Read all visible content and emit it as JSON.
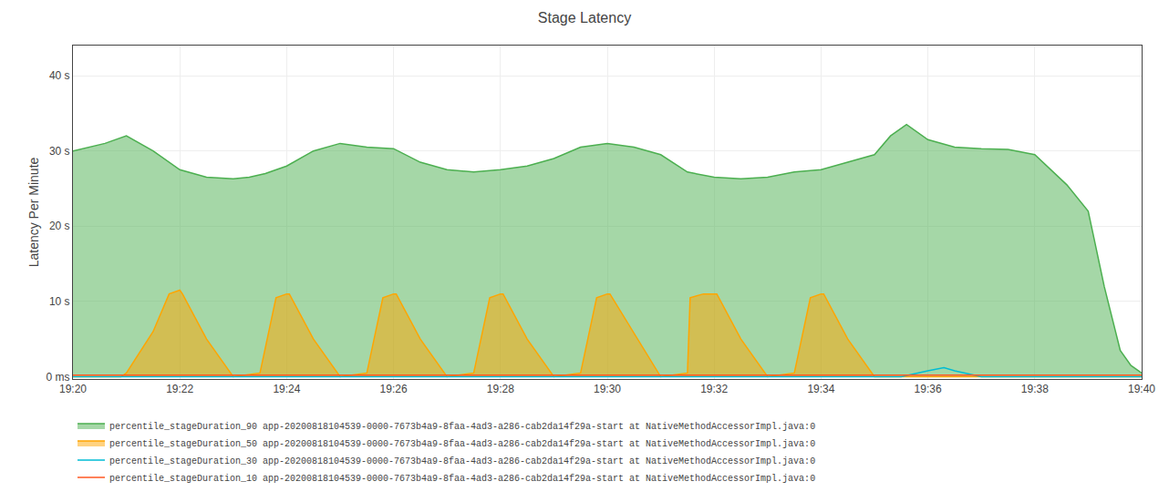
{
  "chart_data": {
    "type": "line",
    "title": "Stage Latency",
    "ylabel": "Latency Per Minute",
    "xlim": [
      0,
      20
    ],
    "xticks": [
      {
        "value": 0,
        "label": "19:20"
      },
      {
        "value": 2,
        "label": "19:22"
      },
      {
        "value": 4,
        "label": "19:24"
      },
      {
        "value": 6,
        "label": "19:26"
      },
      {
        "value": 8,
        "label": "19:28"
      },
      {
        "value": 10,
        "label": "19:30"
      },
      {
        "value": 12,
        "label": "19:32"
      },
      {
        "value": 14,
        "label": "19:34"
      },
      {
        "value": 16,
        "label": "19:36"
      },
      {
        "value": 18,
        "label": "19:38"
      },
      {
        "value": 20,
        "label": "19:40"
      }
    ],
    "ylim": [
      -0.3,
      44
    ],
    "yticks": [
      {
        "value": 0,
        "label": "0 ms"
      },
      {
        "value": 10,
        "label": "10 s"
      },
      {
        "value": 20,
        "label": "20 s"
      },
      {
        "value": 30,
        "label": "30 s"
      },
      {
        "value": 40,
        "label": "40 s"
      }
    ],
    "grid": true,
    "legend": "bottom",
    "series": [
      {
        "name": "percentile_stageDuration_90 app-20200818104539-0000-7673b4a9-8faa-4ad3-a286-cab2da14f29a-start at NativeMethodAccessorImpl.java:0",
        "type": "area",
        "color": "#4caf50",
        "x": [
          0,
          0.3,
          0.6,
          1.0,
          1.5,
          2.0,
          2.5,
          3.0,
          3.3,
          3.6,
          4.0,
          4.5,
          5.0,
          5.5,
          6.0,
          6.5,
          7.0,
          7.5,
          8.0,
          8.5,
          9.0,
          9.5,
          10.0,
          10.5,
          11.0,
          11.5,
          12.0,
          12.5,
          13.0,
          13.5,
          14.0,
          14.5,
          15.0,
          15.3,
          15.6,
          16.0,
          16.5,
          17.0,
          17.5,
          18.0,
          18.3,
          18.6,
          19.0,
          19.3,
          19.6,
          19.8,
          20.0
        ],
        "values": [
          30,
          30.5,
          31,
          32,
          30,
          27.5,
          26.5,
          26.3,
          26.5,
          27,
          28,
          30,
          31,
          30.5,
          30.3,
          28.5,
          27.5,
          27.2,
          27.5,
          28,
          29,
          30.5,
          31,
          30.5,
          29.5,
          27.2,
          26.5,
          26.3,
          26.5,
          27.2,
          27.5,
          28.5,
          29.5,
          32,
          33.5,
          31.5,
          30.5,
          30.3,
          30.2,
          29.5,
          27.5,
          25.5,
          22,
          12,
          3.5,
          1.5,
          0.5
        ]
      },
      {
        "name": "percentile_stageDuration_50 app-20200818104539-0000-7673b4a9-8faa-4ad3-a286-cab2da14f29a-start at NativeMethodAccessorImpl.java:0",
        "type": "area",
        "color": "#ffa500",
        "x": [
          0,
          0.9,
          1.0,
          1.5,
          1.8,
          2.0,
          2.05,
          2.5,
          3.0,
          3.5,
          3.8,
          4.0,
          4.05,
          4.5,
          5.0,
          5.5,
          5.8,
          6.0,
          6.05,
          6.5,
          7.0,
          7.5,
          7.8,
          8.0,
          8.05,
          8.5,
          9.0,
          9.5,
          9.8,
          10.0,
          10.05,
          11.0,
          11.5,
          11.55,
          11.8,
          12.0,
          12.05,
          12.5,
          13.0,
          13.5,
          13.8,
          14.0,
          14.05,
          14.5,
          15.0,
          15.5,
          16.0,
          16.5,
          17.0,
          17.5,
          18.0,
          18.5,
          19.0,
          19.5,
          20.0
        ],
        "values": [
          0,
          0,
          0.5,
          6,
          11,
          11.5,
          11,
          5,
          0,
          0.5,
          10.5,
          11,
          11,
          5,
          0,
          0.5,
          10.5,
          11,
          11,
          5,
          0,
          0.5,
          10.5,
          11,
          11,
          5,
          0,
          0.5,
          10.5,
          11,
          11,
          0,
          0.5,
          10.5,
          11,
          11,
          11,
          5,
          0,
          0.5,
          10.5,
          11,
          11,
          5,
          0,
          0,
          0,
          0,
          0,
          0,
          0,
          0,
          0,
          0,
          0
        ]
      },
      {
        "name": "percentile_stageDuration_30 app-20200818104539-0000-7673b4a9-8faa-4ad3-a286-cab2da14f29a-start at NativeMethodAccessorImpl.java:0",
        "type": "line",
        "color": "#00bcd4",
        "x": [
          0,
          14.0,
          15.0,
          15.5,
          16.0,
          16.3,
          16.5,
          17.0,
          20.0
        ],
        "values": [
          0,
          0,
          0,
          0,
          0.8,
          1.2,
          0.8,
          0,
          0
        ]
      },
      {
        "name": "percentile_stageDuration_10 app-20200818104539-0000-7673b4a9-8faa-4ad3-a286-cab2da14f29a-start at NativeMethodAccessorImpl.java:0",
        "type": "line",
        "color": "#ff5722",
        "x": [
          0,
          20
        ],
        "values": [
          0.2,
          0.2
        ]
      }
    ]
  }
}
